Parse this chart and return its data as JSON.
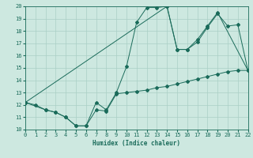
{
  "xlabel": "Humidex (Indice chaleur)",
  "xlim": [
    0,
    22
  ],
  "ylim": [
    10,
    20
  ],
  "xticks": [
    0,
    1,
    2,
    3,
    4,
    5,
    6,
    7,
    8,
    9,
    10,
    11,
    12,
    13,
    14,
    15,
    16,
    17,
    18,
    19,
    20,
    21,
    22
  ],
  "yticks": [
    10,
    11,
    12,
    13,
    14,
    15,
    16,
    17,
    18,
    19,
    20
  ],
  "bg_color": "#cde8e0",
  "grid_color": "#aacfc5",
  "line_color": "#1a6b5a",
  "line1_x": [
    0,
    1,
    2,
    3,
    4,
    5,
    6,
    7,
    8,
    9,
    10,
    11,
    12,
    13,
    14,
    15,
    16,
    17,
    18,
    19,
    20,
    21,
    22
  ],
  "line1_y": [
    12.2,
    12.0,
    11.6,
    11.4,
    11.0,
    10.3,
    10.3,
    11.6,
    11.5,
    12.9,
    13.0,
    13.1,
    13.2,
    13.4,
    13.5,
    13.7,
    13.9,
    14.1,
    14.3,
    14.5,
    14.7,
    14.8,
    14.8
  ],
  "line2_x": [
    0,
    2,
    3,
    4,
    5,
    6,
    7,
    8,
    9,
    10,
    11,
    12,
    13,
    14,
    15,
    16,
    17,
    18,
    19,
    22
  ],
  "line2_y": [
    12.2,
    11.6,
    11.4,
    11.0,
    10.3,
    10.3,
    12.2,
    11.6,
    13.0,
    15.1,
    18.7,
    19.9,
    19.9,
    20.0,
    16.5,
    16.5,
    17.3,
    18.4,
    19.5,
    14.8
  ],
  "line3_x": [
    0,
    14,
    15,
    16,
    17,
    18,
    19,
    20,
    21,
    22
  ],
  "line3_y": [
    12.2,
    20.0,
    16.5,
    16.5,
    17.1,
    18.3,
    19.4,
    18.4,
    18.5,
    14.8
  ]
}
